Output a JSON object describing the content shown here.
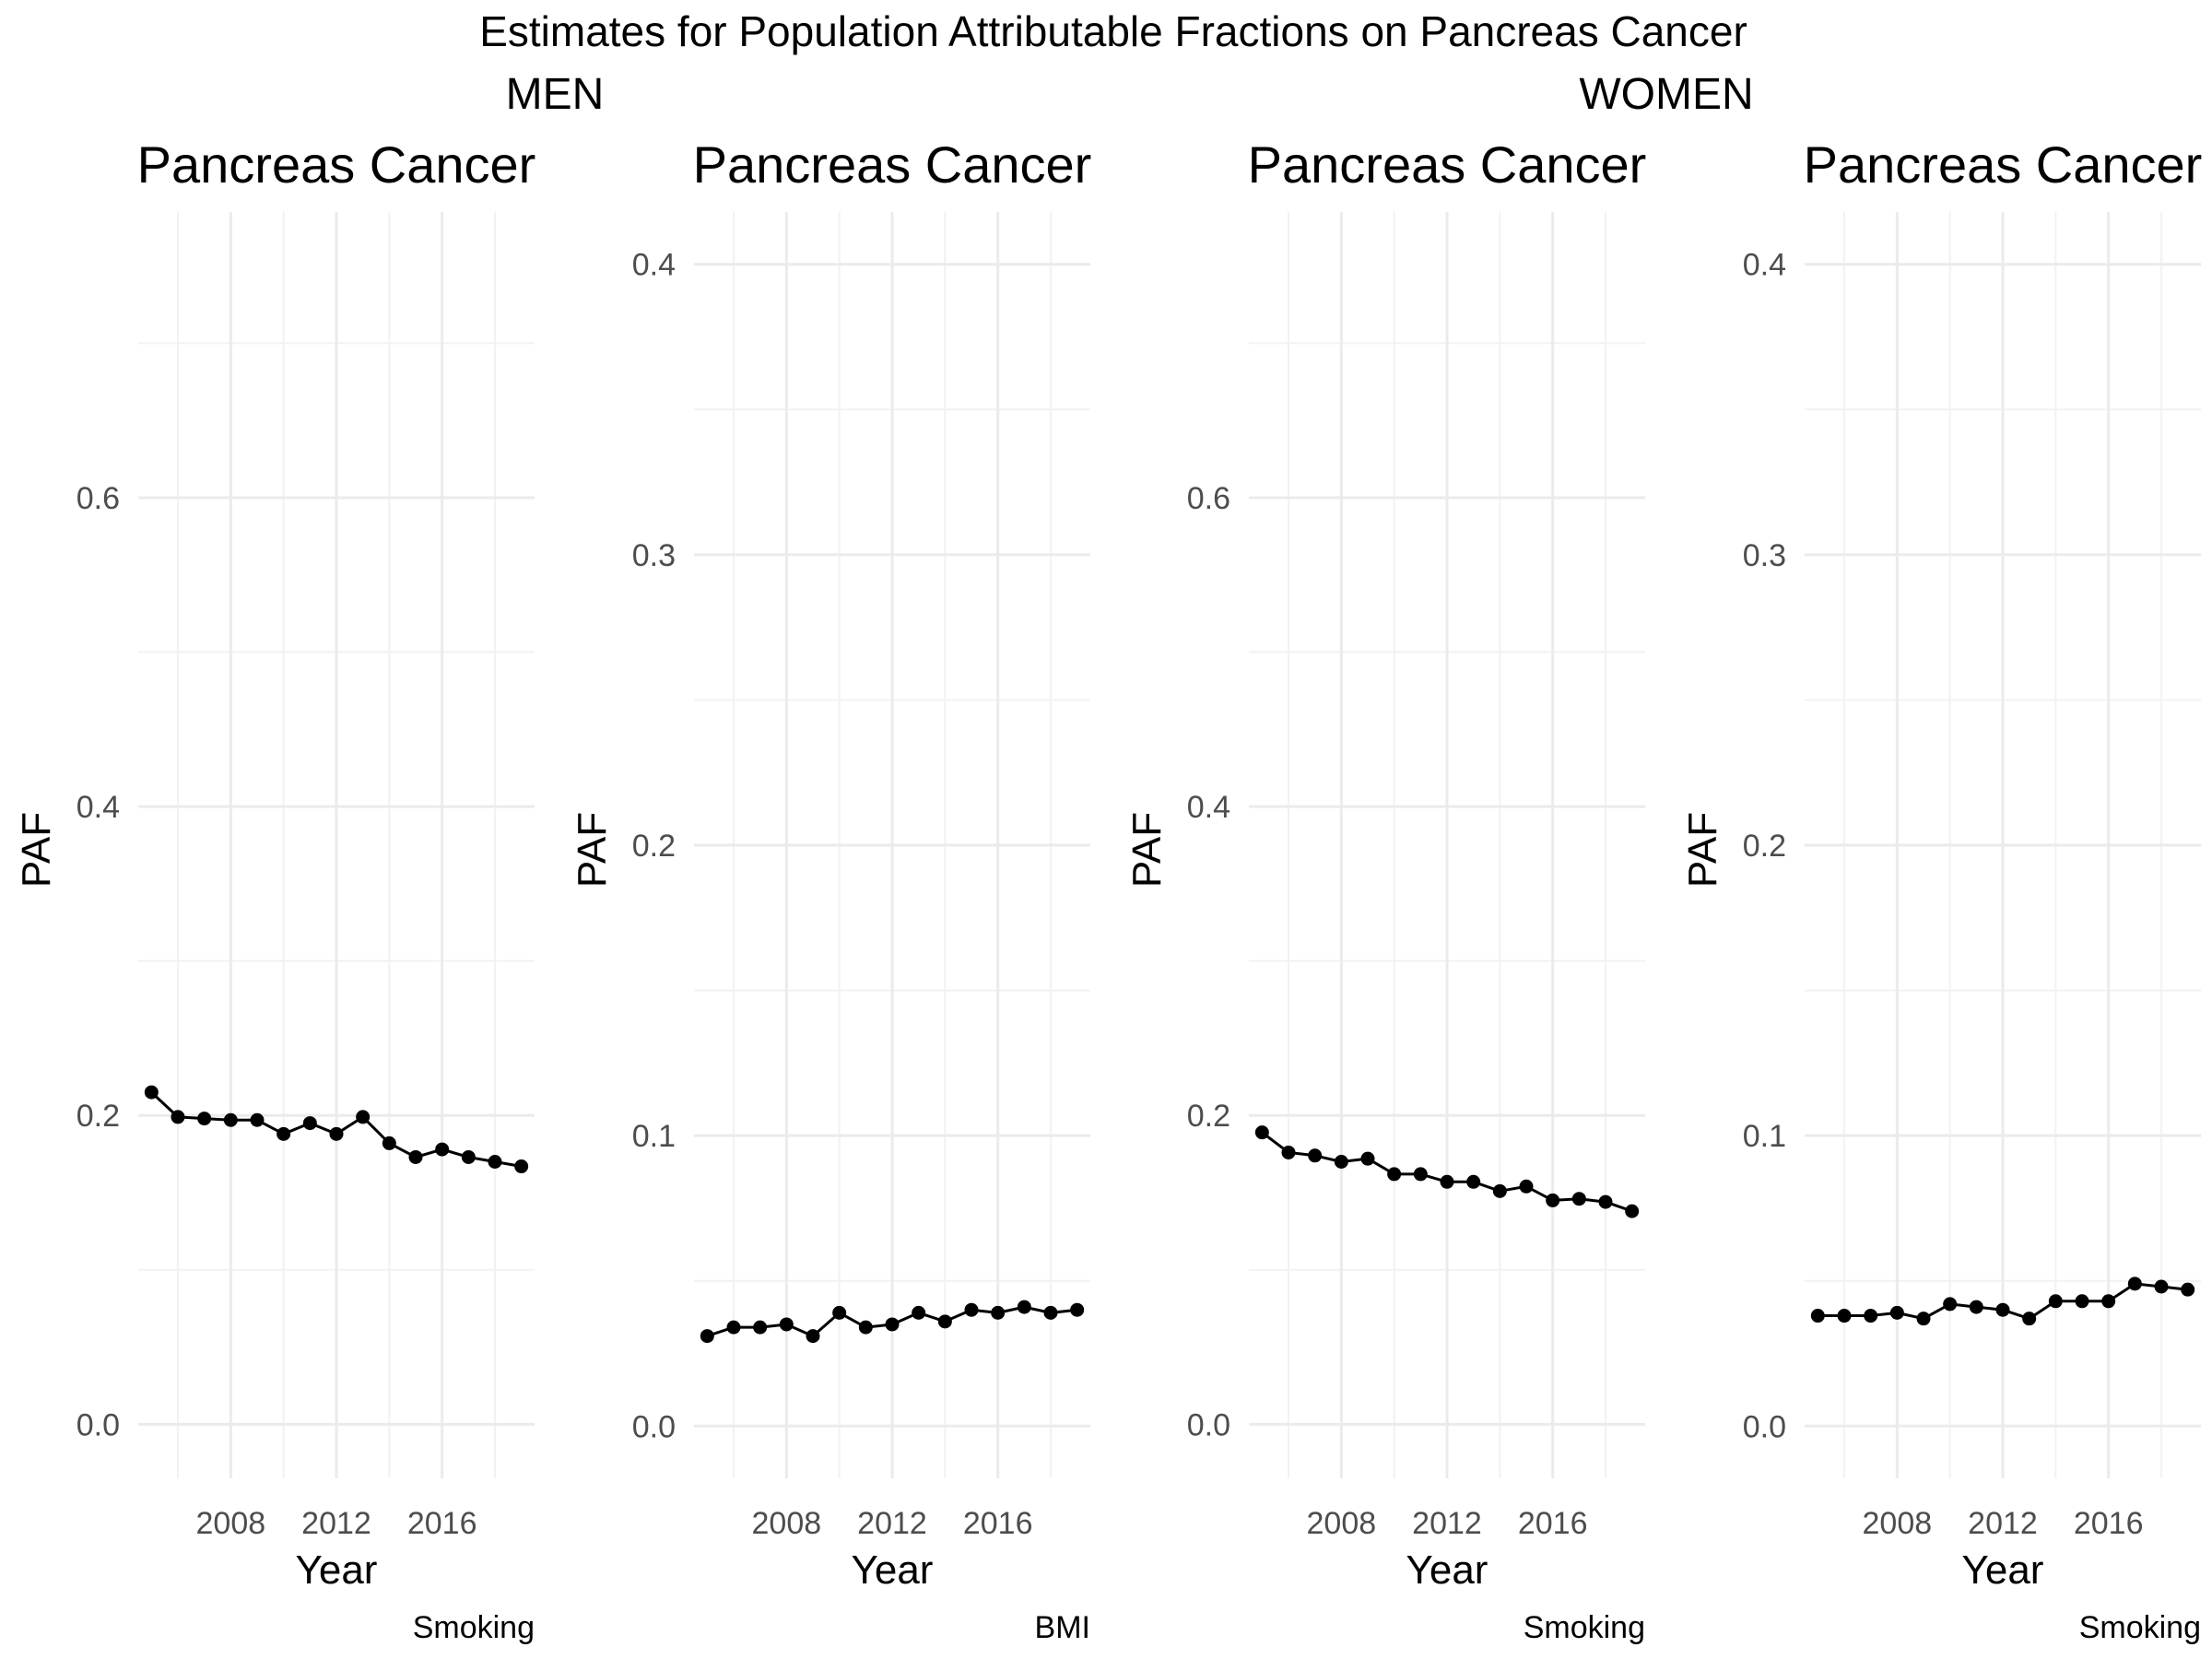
{
  "figure": {
    "title": "Estimates for Population Attributable Fractions on Pancreas Cancer",
    "groups": [
      "MEN",
      "WOMEN"
    ]
  },
  "chart_data": [
    {
      "type": "line",
      "group": "MEN",
      "title": "Pancreas Cancer",
      "xlabel": "Year",
      "ylabel": "PAF",
      "caption": "Smoking",
      "xlim": [
        2004.5,
        2019.5
      ],
      "ylim": [
        -0.035,
        0.785
      ],
      "xticks": [
        2008,
        2012,
        2016
      ],
      "yticks": [
        0.0,
        0.2,
        0.4,
        0.6
      ],
      "ytick_labels": [
        "0.0",
        "0.2",
        "0.4",
        "0.6"
      ],
      "grid": true,
      "x": [
        2005,
        2006,
        2007,
        2008,
        2009,
        2010,
        2011,
        2012,
        2013,
        2014,
        2015,
        2016,
        2017,
        2018,
        2019
      ],
      "values": [
        0.215,
        0.199,
        0.198,
        0.197,
        0.197,
        0.188,
        0.195,
        0.188,
        0.199,
        0.182,
        0.173,
        0.178,
        0.173,
        0.17,
        0.167
      ]
    },
    {
      "type": "line",
      "group": "MEN",
      "title": "Pancreas Cancer",
      "xlabel": "Year",
      "ylabel": "PAF",
      "caption": "BMI",
      "xlim": [
        2004.5,
        2019.5
      ],
      "ylim": [
        -0.018,
        0.418
      ],
      "xticks": [
        2008,
        2012,
        2016
      ],
      "yticks": [
        0.0,
        0.1,
        0.2,
        0.3,
        0.4
      ],
      "ytick_labels": [
        "0.0",
        "0.1",
        "0.2",
        "0.3",
        "0.4"
      ],
      "grid": true,
      "x": [
        2005,
        2006,
        2007,
        2008,
        2009,
        2010,
        2011,
        2012,
        2013,
        2014,
        2015,
        2016,
        2017,
        2018,
        2019
      ],
      "values": [
        0.031,
        0.034,
        0.034,
        0.035,
        0.031,
        0.039,
        0.034,
        0.035,
        0.039,
        0.036,
        0.04,
        0.039,
        0.041,
        0.039,
        0.04
      ]
    },
    {
      "type": "line",
      "group": "WOMEN",
      "title": "Pancreas Cancer",
      "xlabel": "Year",
      "ylabel": "PAF",
      "caption": "Smoking",
      "xlim": [
        2004.5,
        2019.5
      ],
      "ylim": [
        -0.035,
        0.785
      ],
      "xticks": [
        2008,
        2012,
        2016
      ],
      "yticks": [
        0.0,
        0.2,
        0.4,
        0.6
      ],
      "ytick_labels": [
        "0.0",
        "0.2",
        "0.4",
        "0.6"
      ],
      "grid": true,
      "x": [
        2005,
        2006,
        2007,
        2008,
        2009,
        2010,
        2011,
        2012,
        2013,
        2014,
        2015,
        2016,
        2017,
        2018,
        2019
      ],
      "values": [
        0.189,
        0.176,
        0.174,
        0.17,
        0.172,
        0.162,
        0.162,
        0.157,
        0.157,
        0.151,
        0.154,
        0.145,
        0.146,
        0.144,
        0.138
      ]
    },
    {
      "type": "line",
      "group": "WOMEN",
      "title": "Pancreas Cancer",
      "xlabel": "Year",
      "ylabel": "PAF",
      "caption": "Smoking",
      "xlim": [
        2004.5,
        2019.5
      ],
      "ylim": [
        -0.018,
        0.418
      ],
      "xticks": [
        2008,
        2012,
        2016
      ],
      "yticks": [
        0.0,
        0.1,
        0.2,
        0.3,
        0.4
      ],
      "ytick_labels": [
        "0.0",
        "0.1",
        "0.2",
        "0.3",
        "0.4"
      ],
      "grid": true,
      "x": [
        2005,
        2006,
        2007,
        2008,
        2009,
        2010,
        2011,
        2012,
        2013,
        2014,
        2015,
        2016,
        2017,
        2018,
        2019
      ],
      "values": [
        0.038,
        0.038,
        0.038,
        0.039,
        0.037,
        0.042,
        0.041,
        0.04,
        0.037,
        0.043,
        0.043,
        0.043,
        0.049,
        0.048,
        0.047
      ]
    }
  ]
}
